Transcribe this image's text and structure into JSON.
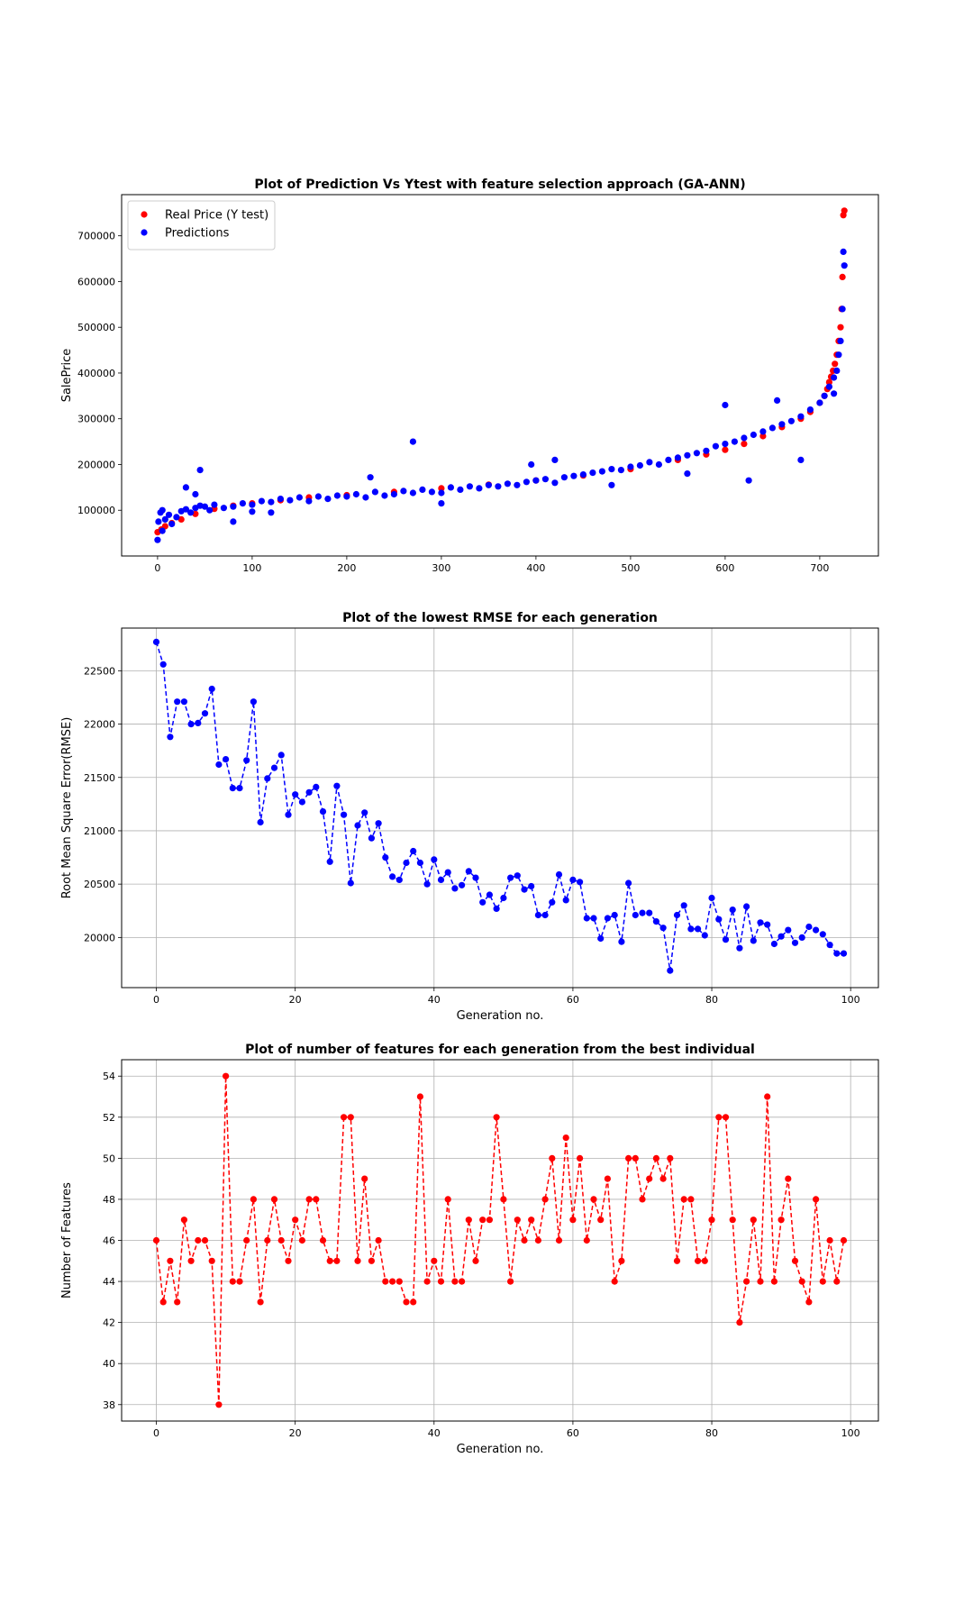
{
  "chart_data": [
    {
      "type": "scatter",
      "title": "Plot of Prediction Vs Ytest with feature selection approach (GA-ANN)",
      "xlabel": "",
      "ylabel": "SalePrice",
      "xlim": [
        -38,
        762
      ],
      "ylim": [
        0,
        790000
      ],
      "xticks": [
        0,
        100,
        200,
        300,
        400,
        500,
        600,
        700
      ],
      "yticks": [
        100000,
        200000,
        300000,
        400000,
        500000,
        600000,
        700000
      ],
      "grid": false,
      "legend_position": "top-left",
      "series": [
        {
          "name": "Real Price (Y test)",
          "color": "#ff0000",
          "x": [
            0,
            4,
            8,
            15,
            25,
            40,
            60,
            80,
            100,
            130,
            160,
            200,
            250,
            300,
            350,
            400,
            450,
            500,
            550,
            580,
            600,
            620,
            640,
            660,
            680,
            690,
            700,
            705,
            708,
            710,
            712,
            714,
            716,
            718,
            720,
            722,
            723,
            724,
            725,
            726
          ],
          "y": [
            52000,
            58000,
            65000,
            72000,
            80000,
            92000,
            103000,
            110000,
            115000,
            122000,
            128000,
            133000,
            140000,
            148000,
            156000,
            165000,
            176000,
            190000,
            210000,
            222000,
            232000,
            245000,
            262000,
            282000,
            300000,
            315000,
            335000,
            350000,
            365000,
            380000,
            392000,
            405000,
            420000,
            440000,
            470000,
            500000,
            540000,
            610000,
            745000,
            755000
          ]
        },
        {
          "name": "Predictions",
          "color": "#0000ff",
          "x": [
            0,
            1,
            3,
            5,
            8,
            12,
            15,
            20,
            25,
            30,
            35,
            40,
            45,
            50,
            55,
            60,
            70,
            80,
            90,
            100,
            110,
            120,
            130,
            140,
            150,
            160,
            170,
            180,
            190,
            200,
            210,
            220,
            230,
            240,
            250,
            260,
            270,
            280,
            290,
            300,
            310,
            320,
            330,
            340,
            350,
            360,
            370,
            380,
            390,
            400,
            410,
            420,
            430,
            440,
            450,
            460,
            470,
            480,
            490,
            500,
            510,
            520,
            530,
            540,
            550,
            560,
            570,
            580,
            590,
            600,
            610,
            620,
            630,
            640,
            650,
            660,
            670,
            680,
            690,
            700,
            705,
            710,
            715,
            718,
            720,
            722,
            724,
            725,
            726,
            30,
            45,
            80,
            120,
            225,
            270,
            395,
            420,
            560,
            600,
            625,
            655,
            680,
            715,
            5,
            40,
            100,
            300,
            480
          ],
          "y": [
            35000,
            75000,
            95000,
            55000,
            80000,
            90000,
            70000,
            85000,
            98000,
            102000,
            95000,
            105000,
            110000,
            108000,
            100000,
            112000,
            105000,
            108000,
            115000,
            112000,
            120000,
            118000,
            125000,
            122000,
            128000,
            120000,
            130000,
            125000,
            132000,
            130000,
            135000,
            128000,
            140000,
            132000,
            135000,
            142000,
            138000,
            145000,
            140000,
            138000,
            150000,
            145000,
            152000,
            148000,
            155000,
            152000,
            158000,
            155000,
            162000,
            165000,
            168000,
            160000,
            172000,
            175000,
            178000,
            182000,
            185000,
            190000,
            188000,
            195000,
            198000,
            205000,
            200000,
            210000,
            215000,
            220000,
            225000,
            230000,
            240000,
            245000,
            250000,
            258000,
            265000,
            272000,
            280000,
            288000,
            295000,
            305000,
            320000,
            335000,
            350000,
            370000,
            390000,
            405000,
            440000,
            470000,
            540000,
            665000,
            635000,
            150000,
            188000,
            75000,
            95000,
            172000,
            250000,
            200000,
            210000,
            180000,
            330000,
            165000,
            340000,
            210000,
            355000,
            100000,
            135000,
            97000,
            115000,
            155000
          ]
        }
      ]
    },
    {
      "type": "line",
      "title": "Plot of the lowest RMSE for each generation",
      "xlabel": "Generation no.",
      "ylabel": "Root Mean Square Error(RMSE)",
      "xlim": [
        -5,
        104
      ],
      "ylim": [
        19530,
        22900
      ],
      "xticks": [
        0,
        20,
        40,
        60,
        80,
        100
      ],
      "yticks": [
        20000,
        20500,
        21000,
        21500,
        22000,
        22500
      ],
      "grid": true,
      "line_style": "dashed with circle markers",
      "series": [
        {
          "color": "#0000ff",
          "x": [
            0,
            1,
            2,
            3,
            4,
            5,
            6,
            7,
            8,
            9,
            10,
            11,
            12,
            13,
            14,
            15,
            16,
            17,
            18,
            19,
            20,
            21,
            22,
            23,
            24,
            25,
            26,
            27,
            28,
            29,
            30,
            31,
            32,
            33,
            34,
            35,
            36,
            37,
            38,
            39,
            40,
            41,
            42,
            43,
            44,
            45,
            46,
            47,
            48,
            49,
            50,
            51,
            52,
            53,
            54,
            55,
            56,
            57,
            58,
            59,
            60,
            61,
            62,
            63,
            64,
            65,
            66,
            67,
            68,
            69,
            70,
            71,
            72,
            73,
            74,
            75,
            76,
            77,
            78,
            79,
            80,
            81,
            82,
            83,
            84,
            85,
            86,
            87,
            88,
            89,
            90,
            91,
            92,
            93,
            94,
            95,
            96,
            97,
            98,
            99
          ],
          "y": [
            22770,
            22560,
            21880,
            22210,
            22210,
            22000,
            22010,
            22100,
            22330,
            21620,
            21670,
            21400,
            21400,
            21660,
            22210,
            21080,
            21490,
            21590,
            21710,
            21150,
            21340,
            21270,
            21360,
            21410,
            21180,
            20710,
            21420,
            21150,
            20510,
            21050,
            21170,
            20930,
            21070,
            20750,
            20570,
            20540,
            20700,
            20810,
            20700,
            20500,
            20730,
            20540,
            20610,
            20460,
            20490,
            20620,
            20560,
            20330,
            20400,
            20270,
            20370,
            20560,
            20580,
            20450,
            20480,
            20210,
            20210,
            20330,
            20590,
            20350,
            20540,
            20520,
            20180,
            20180,
            19990,
            20180,
            20210,
            19960,
            20510,
            20210,
            20230,
            20230,
            20150,
            20090,
            19690,
            20210,
            20300,
            20080,
            20080,
            20020,
            20370,
            20170,
            19980,
            20260,
            19900,
            20290,
            19970,
            20140,
            20120,
            19940,
            20010,
            20070,
            19950,
            20000,
            20100,
            20070,
            20030,
            19930,
            19850,
            19850
          ]
        }
      ]
    },
    {
      "type": "line",
      "title": "Plot of number of features for each generation from the best individual",
      "xlabel": "Generation no.",
      "ylabel": "Number of Features",
      "xlim": [
        -5,
        104
      ],
      "ylim": [
        37.2,
        54.8
      ],
      "xticks": [
        0,
        20,
        40,
        60,
        80,
        100
      ],
      "yticks": [
        38,
        40,
        42,
        44,
        46,
        48,
        50,
        52,
        54
      ],
      "grid": true,
      "line_style": "dashed with circle markers",
      "series": [
        {
          "color": "#ff0000",
          "x": [
            0,
            1,
            2,
            3,
            4,
            5,
            6,
            7,
            8,
            9,
            10,
            11,
            12,
            13,
            14,
            15,
            16,
            17,
            18,
            19,
            20,
            21,
            22,
            23,
            24,
            25,
            26,
            27,
            28,
            29,
            30,
            31,
            32,
            33,
            34,
            35,
            36,
            37,
            38,
            39,
            40,
            41,
            42,
            43,
            44,
            45,
            46,
            47,
            48,
            49,
            50,
            51,
            52,
            53,
            54,
            55,
            56,
            57,
            58,
            59,
            60,
            61,
            62,
            63,
            64,
            65,
            66,
            67,
            68,
            69,
            70,
            71,
            72,
            73,
            74,
            75,
            76,
            77,
            78,
            79,
            80,
            81,
            82,
            83,
            84,
            85,
            86,
            87,
            88,
            89,
            90,
            91,
            92,
            93,
            94,
            95,
            96,
            97,
            98,
            99
          ],
          "y": [
            46,
            43,
            45,
            43,
            47,
            45,
            46,
            46,
            45,
            38,
            54,
            44,
            44,
            46,
            48,
            43,
            46,
            48,
            46,
            45,
            47,
            46,
            48,
            48,
            46,
            45,
            45,
            52,
            52,
            45,
            49,
            45,
            46,
            44,
            44,
            44,
            43,
            43,
            53,
            44,
            45,
            44,
            48,
            44,
            44,
            47,
            45,
            47,
            47,
            52,
            48,
            44,
            47,
            46,
            47,
            46,
            48,
            50,
            46,
            51,
            47,
            50,
            46,
            48,
            47,
            49,
            44,
            45,
            50,
            50,
            48,
            49,
            50,
            49,
            50,
            45,
            48,
            48,
            45,
            45,
            47,
            52,
            52,
            47,
            42,
            44,
            47,
            44,
            53,
            44,
            47,
            49,
            45,
            44,
            43,
            48,
            44,
            46,
            44,
            46
          ]
        }
      ]
    }
  ]
}
